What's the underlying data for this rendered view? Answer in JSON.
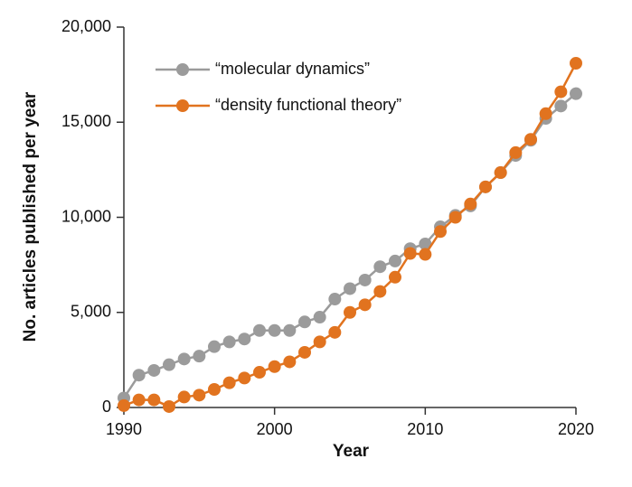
{
  "chart_data": {
    "type": "line",
    "x_label": "Year",
    "y_label": "No. articles published per year",
    "x": [
      1990,
      1991,
      1992,
      1993,
      1994,
      1995,
      1996,
      1997,
      1998,
      1999,
      2000,
      2001,
      2002,
      2003,
      2004,
      2005,
      2006,
      2007,
      2008,
      2009,
      2010,
      2011,
      2012,
      2013,
      2014,
      2015,
      2016,
      2017,
      2018,
      2019,
      2020
    ],
    "series": [
      {
        "name": "“molecular dynamics”",
        "color": "#9b9b9b",
        "values": [
          500,
          1700,
          1950,
          2250,
          2550,
          2700,
          3200,
          3450,
          3600,
          4050,
          4050,
          4050,
          4500,
          4750,
          5700,
          6250,
          6700,
          7400,
          7700,
          8350,
          8600,
          9500,
          10100,
          10600,
          11600,
          12350,
          13250,
          14050,
          15200,
          15850,
          16500
        ]
      },
      {
        "name": "“density functional theory”",
        "color": "#e1731f",
        "values": [
          100,
          400,
          400,
          50,
          550,
          650,
          950,
          1300,
          1550,
          1850,
          2150,
          2400,
          2900,
          3450,
          3950,
          5000,
          5400,
          6100,
          6850,
          8100,
          8050,
          9250,
          10000,
          10700,
          11600,
          12350,
          13400,
          14100,
          15450,
          16600,
          18100
        ]
      }
    ],
    "xlim": [
      1990,
      2020
    ],
    "xticks": [
      1990,
      2000,
      2010,
      2020
    ],
    "ylim": [
      0,
      20000
    ],
    "yticks": [
      0,
      {
        "value": 5000,
        "label": "5,000"
      },
      {
        "value": 10000,
        "label": "10,000"
      },
      {
        "value": 15000,
        "label": "15,000"
      },
      {
        "value": 20000,
        "label": "20,000"
      }
    ],
    "grid": false,
    "legend": "upper left"
  }
}
